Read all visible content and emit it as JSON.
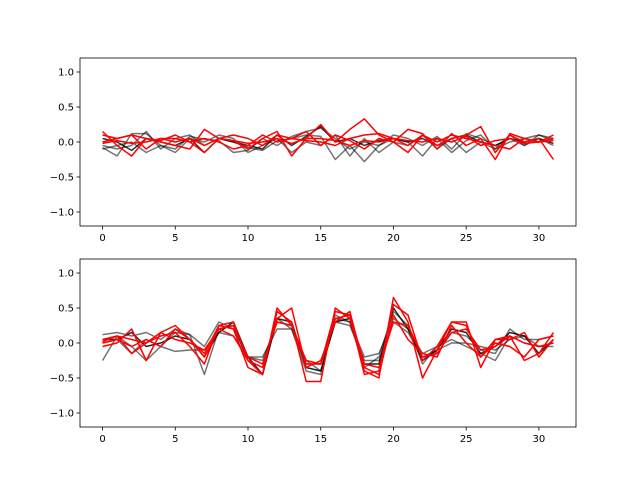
{
  "chart_data": [
    {
      "type": "line",
      "xlim": [
        -1.55,
        32.55
      ],
      "ylim": [
        -1.2,
        1.2
      ],
      "xticks": [
        0,
        5,
        10,
        15,
        20,
        25,
        30
      ],
      "yticks": [
        -1.0,
        -0.5,
        0.0,
        0.5,
        1.0
      ],
      "xtick_labels": [
        "0",
        "5",
        "10",
        "15",
        "20",
        "25",
        "30"
      ],
      "ytick_labels": [
        "−1.0",
        "−0.5",
        "0.0",
        "0.5",
        "1.0"
      ],
      "grid": false,
      "x": [
        0,
        1,
        2,
        3,
        4,
        5,
        6,
        7,
        8,
        9,
        10,
        11,
        12,
        13,
        14,
        15,
        16,
        17,
        18,
        19,
        20,
        21,
        22,
        23,
        24,
        25,
        26,
        27,
        28,
        29,
        30,
        31
      ],
      "series": [
        {
          "color": "#000000",
          "alpha": 0.55,
          "values": [
            -0.08,
            -0.2,
            0.12,
            0.12,
            -0.05,
            -0.1,
            0.08,
            0.04,
            0.02,
            -0.15,
            -0.12,
            0.05,
            -0.05,
            0.08,
            0.15,
            0.2,
            0.05,
            -0.1,
            0.0,
            -0.05,
            0.1,
            0.05,
            -0.05,
            0.08,
            -0.1,
            0.12,
            0.05,
            -0.05,
            0.05,
            -0.05,
            0.1,
            0.02
          ]
        },
        {
          "color": "#000000",
          "alpha": 0.55,
          "values": [
            -0.05,
            -0.1,
            -0.05,
            0.15,
            -0.1,
            0.05,
            0.1,
            -0.05,
            0.05,
            0.0,
            -0.08,
            -0.12,
            0.02,
            0.05,
            0.1,
            0.08,
            -0.25,
            -0.05,
            -0.28,
            -0.05,
            0.05,
            0.0,
            -0.2,
            0.05,
            -0.15,
            0.02,
            0.1,
            -0.1,
            0.0,
            0.05,
            0.1,
            0.05
          ]
        },
        {
          "color": "#000000",
          "alpha": 0.55,
          "values": [
            -0.1,
            -0.05,
            0.0,
            -0.15,
            -0.05,
            -0.15,
            0.05,
            0.0,
            0.1,
            0.05,
            -0.15,
            -0.05,
            0.05,
            -0.15,
            0.0,
            -0.05,
            0.1,
            -0.2,
            0.05,
            -0.15,
            0.0,
            -0.05,
            0.1,
            -0.1,
            0.05,
            -0.15,
            0.0,
            -0.1,
            0.1,
            -0.05,
            0.05,
            -0.05
          ]
        },
        {
          "color": "#000000",
          "alpha": 0.8,
          "values": [
            0.05,
            0.0,
            -0.12,
            0.05,
            0.0,
            -0.05,
            0.05,
            -0.15,
            0.05,
            0.0,
            -0.05,
            -0.1,
            0.1,
            -0.05,
            0.08,
            0.22,
            0.0,
            0.05,
            -0.05,
            0.02,
            0.05,
            0.0,
            0.05,
            -0.05,
            0.05,
            0.1,
            0.0,
            -0.05,
            0.05,
            0.0,
            0.05,
            -0.02
          ]
        },
        {
          "color": "#ff0000",
          "alpha": 1.0,
          "values": [
            0.15,
            -0.05,
            -0.2,
            0.05,
            0.0,
            -0.05,
            -0.1,
            0.18,
            0.05,
            0.02,
            -0.1,
            0.05,
            0.15,
            -0.2,
            0.05,
            0.25,
            0.0,
            0.18,
            0.33,
            0.1,
            0.0,
            -0.15,
            0.1,
            -0.05,
            0.05,
            0.1,
            0.22,
            -0.15,
            0.1,
            0.0,
            0.05,
            -0.25
          ]
        },
        {
          "color": "#ff0000",
          "alpha": 1.0,
          "values": [
            0.0,
            0.05,
            0.1,
            -0.1,
            0.05,
            0.05,
            0.0,
            0.05,
            0.0,
            -0.1,
            -0.05,
            0.1,
            0.0,
            0.05,
            0.02,
            0.0,
            -0.05,
            0.05,
            0.1,
            0.12,
            0.05,
            -0.05,
            0.1,
            0.0,
            0.1,
            0.05,
            0.0,
            -0.05,
            -0.1,
            0.05,
            0.0,
            0.05
          ]
        },
        {
          "color": "#ff0000",
          "alpha": 1.0,
          "values": [
            -0.02,
            0.02,
            -0.02,
            0.0,
            0.05,
            0.0,
            0.05,
            -0.05,
            0.05,
            0.02,
            -0.02,
            0.0,
            0.05,
            -0.02,
            0.05,
            0.05,
            0.02,
            -0.05,
            0.02,
            0.0,
            0.05,
            0.02,
            0.0,
            0.05,
            0.0,
            0.08,
            -0.05,
            0.02,
            0.05,
            -0.02,
            0.0,
            0.02
          ]
        },
        {
          "color": "#ff0000",
          "alpha": 1.0,
          "values": [
            0.1,
            0.05,
            0.1,
            0.05,
            0.02,
            0.1,
            0.0,
            -0.15,
            0.05,
            0.1,
            0.05,
            -0.05,
            0.1,
            0.05,
            0.15,
            -0.05,
            0.1,
            0.02,
            -0.1,
            0.05,
            0.0,
            0.18,
            0.12,
            -0.1,
            0.12,
            -0.05,
            0.05,
            -0.25,
            0.12,
            0.05,
            0.0,
            0.1
          ]
        }
      ]
    },
    {
      "type": "line",
      "xlim": [
        -1.55,
        32.55
      ],
      "ylim": [
        -1.2,
        1.2
      ],
      "xticks": [
        0,
        5,
        10,
        15,
        20,
        25,
        30
      ],
      "yticks": [
        -1.0,
        -0.5,
        0.0,
        0.5,
        1.0
      ],
      "xtick_labels": [
        "0",
        "5",
        "10",
        "15",
        "20",
        "25",
        "30"
      ],
      "ytick_labels": [
        "−1.0",
        "−0.5",
        "0.0",
        "0.5",
        "1.0"
      ],
      "grid": false,
      "x": [
        0,
        1,
        2,
        3,
        4,
        5,
        6,
        7,
        8,
        9,
        10,
        11,
        12,
        13,
        14,
        15,
        16,
        17,
        18,
        19,
        20,
        21,
        22,
        23,
        24,
        25,
        26,
        27,
        28,
        29,
        30,
        31
      ],
      "series": [
        {
          "color": "#000000",
          "alpha": 0.55,
          "values": [
            0.12,
            0.15,
            0.1,
            0.15,
            0.05,
            0.2,
            0.12,
            -0.05,
            0.3,
            0.2,
            -0.2,
            -0.25,
            0.3,
            0.25,
            -0.25,
            -0.4,
            0.35,
            0.3,
            -0.2,
            -0.15,
            0.35,
            0.2,
            -0.15,
            -0.05,
            0.15,
            0.1,
            -0.1,
            -0.15,
            0.2,
            0.05,
            0.05,
            0.1
          ]
        },
        {
          "color": "#000000",
          "alpha": 0.55,
          "values": [
            -0.25,
            0.1,
            -0.05,
            -0.25,
            -0.05,
            0.15,
            0.12,
            -0.45,
            0.2,
            0.25,
            -0.25,
            -0.45,
            0.35,
            0.2,
            -0.4,
            -0.45,
            0.4,
            0.3,
            -0.35,
            -0.2,
            0.45,
            0.25,
            -0.3,
            -0.05,
            0.05,
            -0.05,
            -0.15,
            -0.25,
            0.1,
            0.0,
            -0.05,
            -0.05
          ]
        },
        {
          "color": "#000000",
          "alpha": 0.55,
          "values": [
            0.0,
            0.05,
            -0.15,
            0.05,
            -0.05,
            -0.12,
            -0.1,
            -0.1,
            0.15,
            0.1,
            -0.2,
            -0.2,
            0.2,
            0.2,
            -0.3,
            -0.3,
            0.3,
            0.25,
            -0.25,
            -0.25,
            0.3,
            0.15,
            -0.2,
            -0.1,
            0.0,
            0.0,
            -0.05,
            -0.1,
            0.05,
            0.1,
            -0.05,
            0.0
          ]
        },
        {
          "color": "#000000",
          "alpha": 0.85,
          "values": [
            0.05,
            0.05,
            0.15,
            -0.05,
            0.0,
            0.1,
            0.05,
            -0.2,
            0.15,
            0.3,
            -0.2,
            -0.45,
            0.35,
            0.3,
            -0.35,
            -0.4,
            0.3,
            0.35,
            -0.3,
            -0.3,
            0.5,
            0.2,
            -0.25,
            -0.1,
            0.2,
            0.15,
            -0.15,
            -0.05,
            0.15,
            0.1,
            -0.15,
            0.05
          ]
        },
        {
          "color": "#ff0000",
          "alpha": 1.0,
          "values": [
            0.05,
            0.1,
            -0.15,
            0.0,
            0.1,
            0.15,
            -0.05,
            -0.3,
            0.25,
            0.2,
            -0.35,
            -0.45,
            0.45,
            0.3,
            -0.55,
            -0.55,
            0.5,
            0.35,
            -0.4,
            -0.5,
            0.65,
            0.3,
            -0.5,
            -0.1,
            0.3,
            0.3,
            -0.35,
            0.05,
            0.1,
            -0.25,
            -0.15,
            0.15
          ]
        },
        {
          "color": "#ff0000",
          "alpha": 1.0,
          "values": [
            -0.05,
            0.0,
            0.2,
            -0.25,
            0.15,
            0.25,
            0.05,
            -0.15,
            0.25,
            0.3,
            -0.25,
            -0.45,
            0.5,
            0.25,
            -0.25,
            -0.3,
            0.45,
            0.4,
            -0.45,
            -0.4,
            0.55,
            0.4,
            -0.25,
            -0.05,
            0.3,
            0.25,
            -0.2,
            0.05,
            0.05,
            0.15,
            -0.2,
            0.05
          ]
        },
        {
          "color": "#ff0000",
          "alpha": 1.0,
          "values": [
            0.0,
            0.05,
            -0.05,
            0.05,
            -0.05,
            0.2,
            0.05,
            -0.2,
            0.2,
            0.25,
            -0.2,
            -0.3,
            0.3,
            0.25,
            -0.3,
            -0.3,
            0.35,
            0.4,
            -0.3,
            -0.35,
            0.3,
            0.25,
            -0.2,
            -0.15,
            0.15,
            0.2,
            -0.1,
            -0.05,
            0.1,
            0.0,
            -0.05,
            0.0
          ]
        },
        {
          "color": "#ff0000",
          "alpha": 1.0,
          "values": [
            0.02,
            0.1,
            0.05,
            0.0,
            0.15,
            0.05,
            0.0,
            -0.1,
            0.2,
            0.1,
            -0.25,
            -0.35,
            0.35,
            0.5,
            -0.35,
            -0.25,
            0.3,
            0.45,
            -0.35,
            -0.45,
            0.4,
            0.05,
            -0.15,
            -0.2,
            0.25,
            0.0,
            -0.2,
            0.0,
            -0.05,
            -0.2,
            0.05,
            0.1
          ]
        }
      ]
    }
  ]
}
